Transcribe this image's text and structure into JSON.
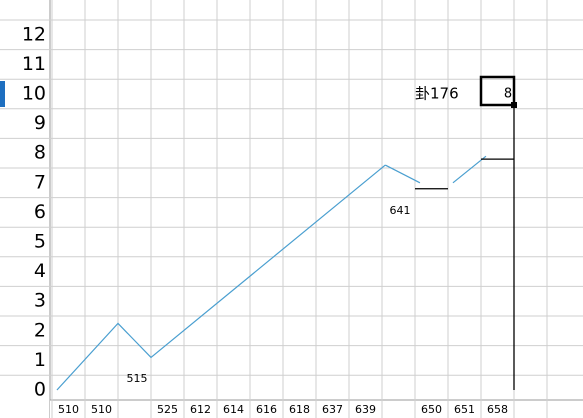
{
  "chart_data": {
    "type": "line",
    "yticks": [
      0,
      1,
      2,
      3,
      4,
      5,
      6,
      7,
      8,
      9,
      10,
      11,
      12
    ],
    "ylim": [
      0,
      12.6
    ],
    "xlim": [
      0,
      16
    ],
    "column_labels": [
      "510",
      "510",
      null,
      "525",
      "612",
      "614",
      "616",
      "618",
      "637",
      "639",
      null,
      "650",
      "651",
      "658",
      null,
      null
    ],
    "selected_row": 10,
    "series": [
      {
        "color": "#4a9fd0",
        "x": [
          0.15,
          2,
          3,
          10.1
        ],
        "values": [
          0,
          2.25,
          1.1,
          7.6
        ]
      },
      {
        "color": "#4a9fd0",
        "x": [
          10.1,
          11.15
        ],
        "values": [
          7.6,
          7.0
        ]
      },
      {
        "color": "#4a9fd0",
        "x": [
          12.15,
          13.15
        ],
        "values": [
          7.0,
          7.9
        ]
      },
      {
        "color": "#000000",
        "x": [
          11,
          12
        ],
        "values": [
          6.8,
          6.8
        ]
      },
      {
        "color": "#000000",
        "x": [
          13,
          14
        ],
        "values": [
          7.8,
          7.8
        ]
      },
      {
        "color": "#000000",
        "x": [
          14,
          14
        ],
        "values": [
          0,
          9.6
        ]
      }
    ],
    "annotations": [
      "515",
      "641",
      "卦176",
      "8"
    ]
  }
}
